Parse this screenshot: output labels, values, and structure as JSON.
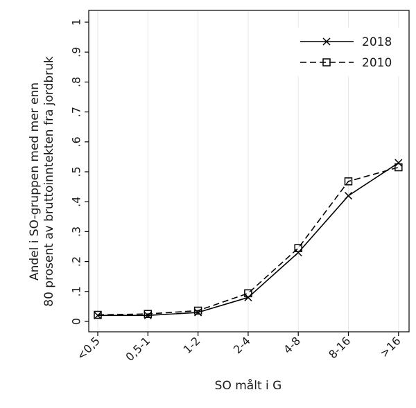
{
  "chart_data": {
    "type": "line",
    "title": "",
    "xlabel": "SO målt i G",
    "ylabel_lines": [
      "Andel i SO-gruppen med mer enn",
      "80 prosent av bruttoinntekten fra jordbruk"
    ],
    "categories": [
      "<0,5",
      "0,5-1",
      "1-2",
      "2-4",
      "4-8",
      "8-16",
      ">16"
    ],
    "yticks": [
      0,
      0.1,
      0.2,
      0.3,
      0.4,
      0.5,
      0.6,
      0.7,
      0.8,
      0.9,
      1
    ],
    "ytick_labels": [
      "0",
      ".1",
      ".2",
      ".3",
      ".4",
      ".5",
      ".6",
      ".7",
      ".8",
      ".9",
      "1"
    ],
    "ylim": [
      0,
      1
    ],
    "grid": "vertical",
    "legend_position": "top-right",
    "series": [
      {
        "name": "2018",
        "marker": "x",
        "style": "solid",
        "color": "#000000",
        "values": [
          0.02,
          0.02,
          0.03,
          0.08,
          0.23,
          0.42,
          0.53
        ]
      },
      {
        "name": "2010",
        "marker": "square",
        "style": "dashed",
        "color": "#000000",
        "values": [
          0.022,
          0.025,
          0.036,
          0.094,
          0.245,
          0.468,
          0.515
        ]
      }
    ]
  }
}
